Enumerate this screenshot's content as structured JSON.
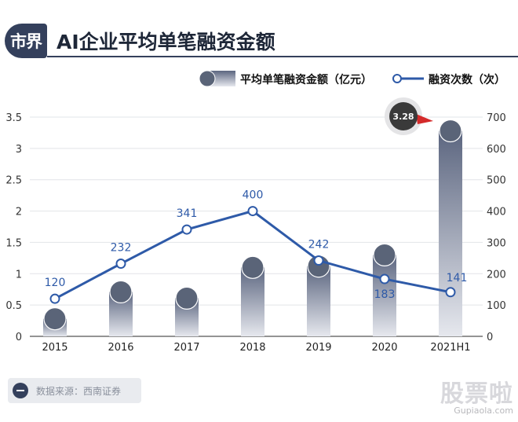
{
  "header": {
    "badge": "市界",
    "title": "AI企业平均单笔融资金额"
  },
  "footer": {
    "source": "数据来源：西南证券"
  },
  "watermark": {
    "cn": "股票啦",
    "en": "Gupiaola.com"
  },
  "colors": {
    "bar_top": "#5c6680",
    "bar_bottom": "#e6e8ee",
    "line": "#2e5aa8",
    "badge_bg": "#3a3a3a",
    "badge_arrow": "#d42a2a"
  },
  "chart_data": {
    "type": "bar+line",
    "categories": [
      "2015",
      "2016",
      "2017",
      "2018",
      "2019",
      "2020",
      "2021H1"
    ],
    "series": [
      {
        "name": "平均单笔融资金额（亿元）",
        "type": "bar",
        "axis": "left",
        "values": [
          0.28,
          0.71,
          0.61,
          1.1,
          1.12,
          1.3,
          3.28
        ]
      },
      {
        "name": "融资次数（次）",
        "type": "line",
        "axis": "right",
        "values": [
          120,
          232,
          341,
          400,
          242,
          183,
          141
        ],
        "labels": [
          "120",
          "232",
          "341",
          "400",
          "242",
          "183",
          "141"
        ]
      }
    ],
    "annotation": "3.28",
    "y_left": {
      "min": 0,
      "max": 3.5,
      "ticks": [
        "0",
        "0.5",
        "1",
        "1.5",
        "2",
        "2.5",
        "3",
        "3.5"
      ]
    },
    "y_right": {
      "min": 0,
      "max": 700,
      "ticks": [
        "0",
        "100",
        "200",
        "300",
        "400",
        "500",
        "600",
        "700"
      ]
    },
    "grid": true,
    "legend_position": "top-right"
  }
}
